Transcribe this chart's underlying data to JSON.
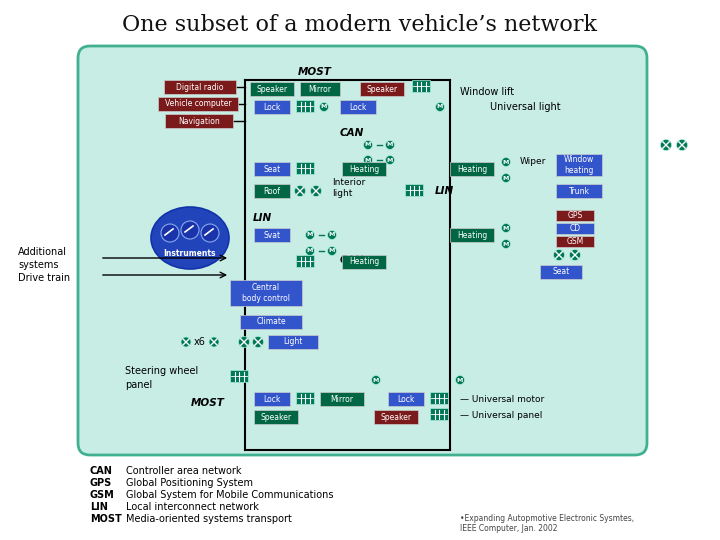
{
  "title": "One subset of a modern vehicle’s network",
  "title_fontsize": 16,
  "bg_color": "#ffffff",
  "car_fill": "#c8ede4",
  "car_edge": "#40b090",
  "blue_box": "#3355cc",
  "dark_green_box": "#006644",
  "maroon_box": "#7a1a1a",
  "footnote": "•Expanding Autopmotive Electronic Sysmtes,\nIEEE Computer, Jan. 2002",
  "abbrevs": [
    [
      "CAN",
      "Controller area network"
    ],
    [
      "GPS",
      "Global Positioning System"
    ],
    [
      "GSM",
      "Global System for Mobile Communications"
    ],
    [
      "LIN",
      "Local interconnect network"
    ],
    [
      "MOST",
      "Media-oriented systems transport"
    ]
  ]
}
